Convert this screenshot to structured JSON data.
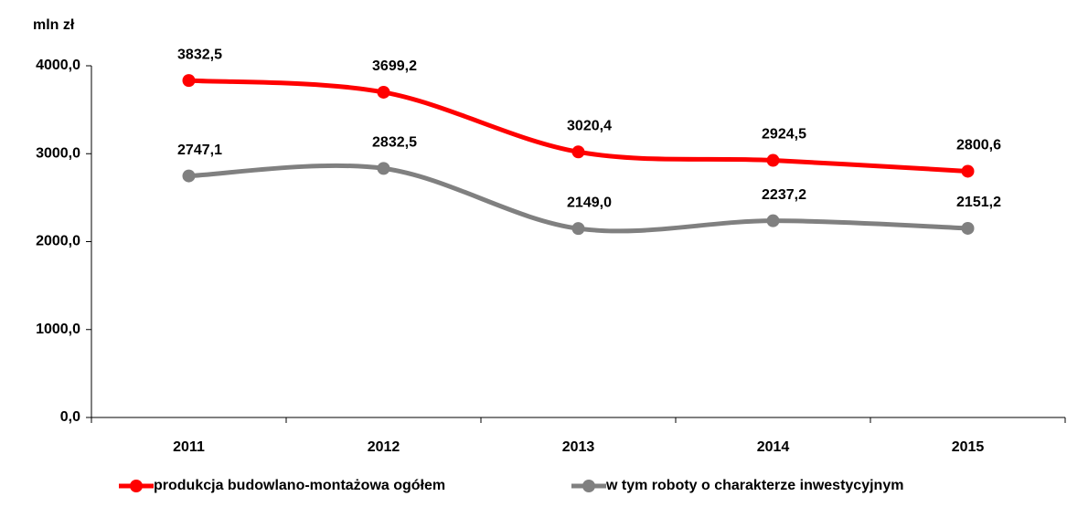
{
  "chart_data": {
    "type": "line",
    "y_axis_label": "mln zł",
    "categories": [
      "2011",
      "2012",
      "2013",
      "2014",
      "2015"
    ],
    "series": [
      {
        "name": "produkcja budowlano-montażowa ogółem",
        "color": "#ff0000",
        "values": [
          3832.5,
          3699.2,
          3020.4,
          2924.5,
          2800.6
        ],
        "value_labels": [
          "3832,5",
          "3699,2",
          "3020,4",
          "2924,5",
          "2800,6"
        ]
      },
      {
        "name": "w tym roboty o charakterze inwestycyjnym",
        "color": "#808080",
        "values": [
          2747.1,
          2832.5,
          2149.0,
          2237.2,
          2151.2
        ],
        "value_labels": [
          "2747,1",
          "2832,5",
          "2149,0",
          "2237,2",
          "2151,2"
        ]
      }
    ],
    "ylim": [
      0,
      4000
    ],
    "yticks": [
      {
        "value": 0,
        "label": "0,0"
      },
      {
        "value": 1000,
        "label": "1000,0"
      },
      {
        "value": 2000,
        "label": "2000,0"
      },
      {
        "value": 3000,
        "label": "3000,0"
      },
      {
        "value": 4000,
        "label": "4000,0"
      }
    ],
    "smooth": true,
    "legend": "bottom"
  }
}
